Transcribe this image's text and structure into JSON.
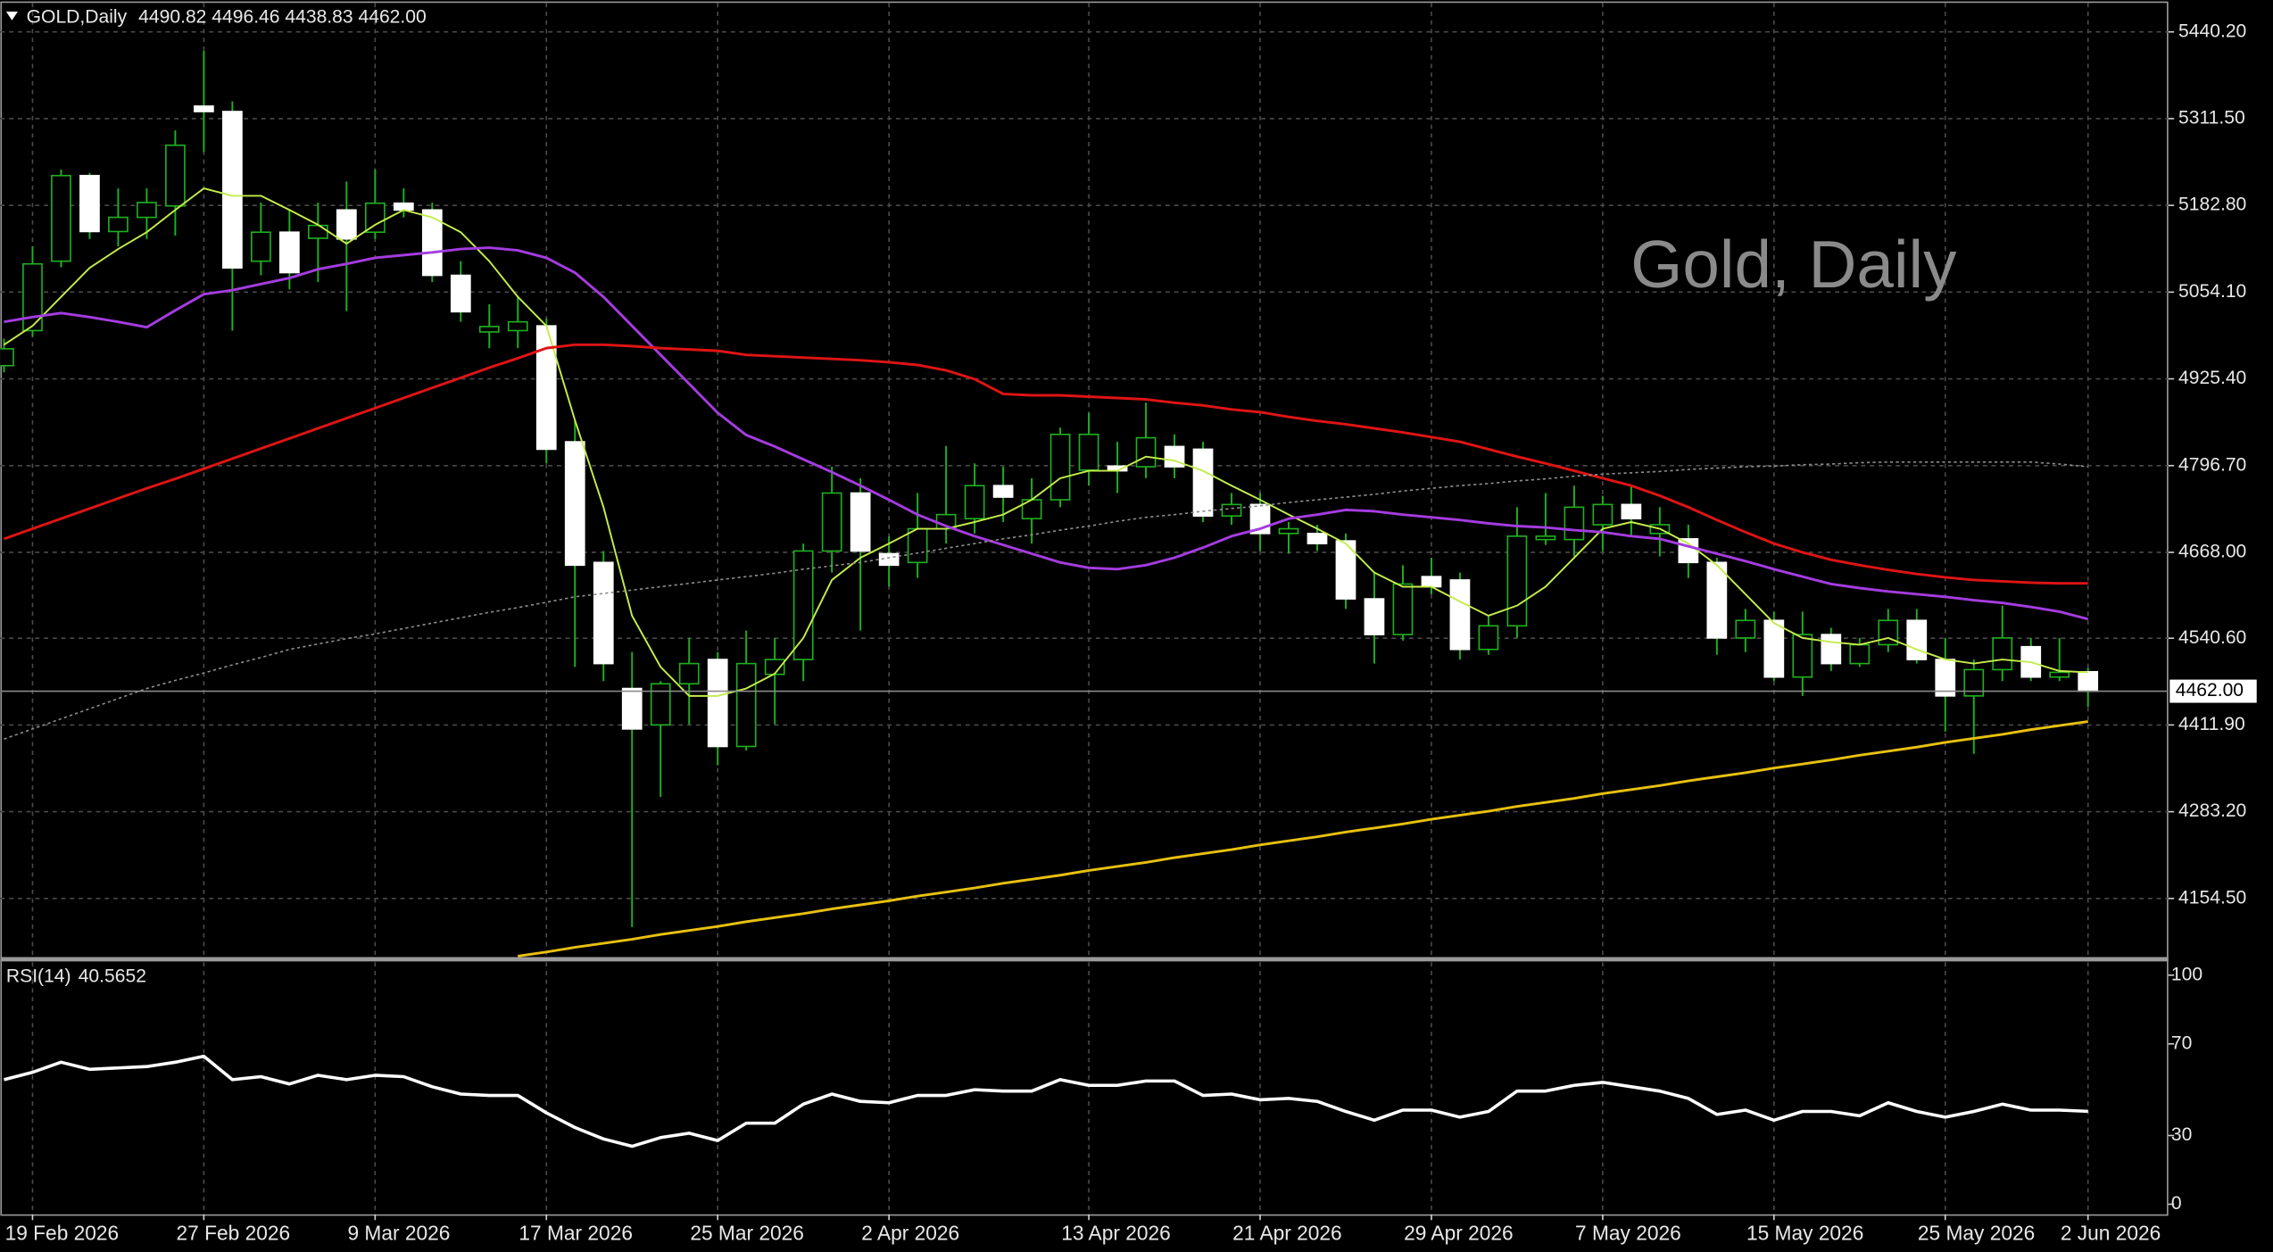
{
  "chart_data": {
    "type": "candlestick",
    "title": "Gold, Daily",
    "symbol": "GOLD,Daily",
    "quote": "4490.82 4496.46 4438.83 4462.00",
    "categories": [
      null,
      "19 Feb 2026",
      null,
      null,
      null,
      null,
      null,
      "27 Feb 2026",
      null,
      null,
      null,
      null,
      null,
      "9 Mar 2026",
      null,
      null,
      null,
      null,
      null,
      "17 Mar 2026",
      null,
      null,
      null,
      null,
      null,
      "25 Mar 2026",
      null,
      null,
      null,
      null,
      null,
      "2 Apr 2026",
      null,
      null,
      null,
      null,
      null,
      null,
      "13 Apr 2026",
      null,
      null,
      null,
      null,
      null,
      "21 Apr 2026",
      null,
      null,
      null,
      null,
      null,
      "29 Apr 2026",
      null,
      null,
      null,
      null,
      null,
      "7 May 2026",
      null,
      null,
      null,
      null,
      null,
      "15 May 2026",
      null,
      null,
      null,
      null,
      null,
      "25 May 2026",
      null,
      null,
      null,
      null,
      "2 Jun 2026"
    ],
    "open": [
      4945,
      4997,
      5100,
      5227,
      5144,
      5165,
      5182,
      5330,
      5322,
      5100,
      5143,
      5134,
      5176,
      5143,
      5186,
      5176,
      5079,
      4995,
      4997,
      5004,
      4832,
      4653,
      4466,
      4412,
      4473,
      4509,
      4380,
      4487,
      4509,
      4670,
      4756,
      4666,
      4653,
      4703,
      4718,
      4767,
      4718,
      4746,
      4790,
      4796,
      4795,
      4825,
      4821,
      4722,
      4739,
      4696,
      4696,
      4685,
      4599,
      4546,
      4632,
      4627,
      4524,
      4559,
      4687,
      4687,
      4709,
      4739,
      4696,
      4688,
      4653,
      4541,
      4567,
      4483,
      4546,
      4503,
      4531,
      4567,
      4509,
      4455,
      4494,
      4528,
      4483,
      4490.82
    ],
    "high": [
      4985,
      5122,
      5236,
      5231,
      5208,
      5208,
      5294,
      5412,
      5337,
      5187,
      5176,
      5187,
      5218,
      5236,
      5208,
      5187,
      5100,
      5036,
      5047,
      5015,
      4864,
      4670,
      4520,
      4477,
      4541,
      4520,
      4552,
      4541,
      4681,
      4795,
      4778,
      4692,
      4756,
      4826,
      4800,
      4795,
      4778,
      4853,
      4875,
      4832,
      4890,
      4843,
      4832,
      4756,
      4756,
      4713,
      4709,
      4696,
      4638,
      4649,
      4660,
      4638,
      4573,
      4735,
      4756,
      4767,
      4752,
      4767,
      4735,
      4709,
      4660,
      4584,
      4580,
      4580,
      4556,
      4541,
      4584,
      4584,
      4541,
      4509,
      4589,
      4541,
      4541,
      4496.46
    ],
    "low": [
      4935,
      4988,
      5091,
      5133,
      5122,
      5133,
      5138,
      5262,
      4997,
      5079,
      5058,
      5069,
      5026,
      5133,
      5165,
      5069,
      5010,
      4971,
      4971,
      4800,
      4498,
      4477,
      4112,
      4305,
      4413,
      4352,
      4374,
      4413,
      4477,
      4638,
      4552,
      4617,
      4630,
      4681,
      4696,
      4713,
      4681,
      4735,
      4767,
      4756,
      4778,
      4778,
      4713,
      4709,
      4670,
      4666,
      4670,
      4584,
      4503,
      4537,
      4606,
      4509,
      4516,
      4541,
      4679,
      4662,
      4670,
      4692,
      4662,
      4630,
      4516,
      4520,
      4477,
      4455,
      4492,
      4498,
      4520,
      4503,
      4402,
      4369,
      4477,
      4477,
      4477,
      4438.83
    ],
    "close": [
      4970,
      5096,
      5227,
      5144,
      5165,
      5187,
      5272,
      5322,
      5090,
      5143,
      5083,
      5153,
      5133,
      5186,
      5176,
      5079,
      5025,
      5003,
      5010,
      4821,
      4649,
      4503,
      4406,
      4473,
      4503,
      4380,
      4503,
      4509,
      4670,
      4756,
      4670,
      4649,
      4703,
      4724,
      4767,
      4750,
      4746,
      4843,
      4843,
      4789,
      4838,
      4795,
      4722,
      4739,
      4696,
      4703,
      4681,
      4599,
      4546,
      4621,
      4617,
      4524,
      4559,
      4692,
      4692,
      4735,
      4739,
      4718,
      4709,
      4653,
      4541,
      4567,
      4483,
      4546,
      4503,
      4531,
      4567,
      4509,
      4455,
      4494,
      4541,
      4483,
      4490,
      4462
    ],
    "up_color": "#000000",
    "down_color": "#ffffff",
    "wick_color": "#1fb01f",
    "series": [
      {
        "color": "#c4ec4c",
        "width": 1.2,
        "values": [
          4976,
          5004,
          5047,
          5090,
          5118,
          5143,
          5176,
          5208,
          5197,
          5197,
          5176,
          5154,
          5126,
          5154,
          5176,
          5165,
          5143,
          5100,
          5047,
          5004,
          4864,
          4735,
          4574,
          4498,
          4455,
          4455,
          4466,
          4488,
          4541,
          4627,
          4660,
          4681,
          4703,
          4703,
          4713,
          4724,
          4746,
          4778,
          4789,
          4789,
          4810,
          4804,
          4789,
          4767,
          4746,
          4724,
          4703,
          4681,
          4638,
          4617,
          4617,
          4595,
          4574,
          4589,
          4617,
          4660,
          4703,
          4713,
          4703,
          4681,
          4649,
          4606,
          4563,
          4541,
          4535,
          4531,
          4541,
          4524,
          4509,
          4503,
          4509,
          4505,
          4492,
          4490
        ]
      },
      {
        "color": "#a43ce0",
        "width": 1.8,
        "values": [
          5010,
          5017,
          5023,
          5017,
          5010,
          5002,
          5027,
          5051,
          5057,
          5066,
          5075,
          5088,
          5096,
          5105,
          5109,
          5113,
          5118,
          5120,
          5116,
          5105,
          5083,
          5047,
          5004,
          4961,
          4918,
          4875,
          4842,
          4825,
          4806,
          4787,
          4767,
          4746,
          4724,
          4707,
          4692,
          4679,
          4666,
          4653,
          4645,
          4643,
          4649,
          4660,
          4675,
          4692,
          4703,
          4718,
          4724,
          4731,
          4729,
          4724,
          4720,
          4716,
          4711,
          4707,
          4705,
          4701,
          4698,
          4692,
          4688,
          4677,
          4666,
          4655,
          4643,
          4632,
          4621,
          4615,
          4610,
          4606,
          4602,
          4597,
          4593,
          4587,
          4580,
          4569
        ]
      },
      {
        "color": "#e01414",
        "width": 1.8,
        "values": [
          4688,
          4703,
          4718,
          4733,
          4748,
          4763,
          4777,
          4792,
          4807,
          4822,
          4837,
          4852,
          4867,
          4882,
          4897,
          4912,
          4927,
          4942,
          4956,
          4971,
          4976,
          4976,
          4974,
          4971,
          4969,
          4967,
          4961,
          4959,
          4957,
          4955,
          4953,
          4950,
          4946,
          4938,
          4925,
          4903,
          4901,
          4901,
          4899,
          4897,
          4895,
          4890,
          4886,
          4880,
          4876,
          4869,
          4863,
          4858,
          4852,
          4846,
          4839,
          4832,
          4821,
          4810,
          4800,
          4789,
          4778,
          4767,
          4752,
          4735,
          4716,
          4698,
          4681,
          4668,
          4657,
          4649,
          4642,
          4636,
          4631,
          4627,
          4625,
          4623,
          4622,
          4622
        ]
      },
      {
        "color": "#8c8c8c",
        "width": 1,
        "dash": true,
        "values": [
          4391,
          4406,
          4421,
          4436,
          4451,
          4466,
          4478,
          4489,
          4501,
          4512,
          4524,
          4532,
          4540,
          4547,
          4555,
          4563,
          4571,
          4579,
          4586,
          4594,
          4602,
          4607,
          4612,
          4617,
          4622,
          4627,
          4632,
          4637,
          4643,
          4648,
          4653,
          4660,
          4667,
          4674,
          4681,
          4688,
          4694,
          4701,
          4707,
          4714,
          4720,
          4724,
          4729,
          4733,
          4737,
          4742,
          4746,
          4750,
          4754,
          4759,
          4763,
          4767,
          4770,
          4774,
          4777,
          4781,
          4784,
          4786,
          4788,
          4791,
          4793,
          4795,
          4796,
          4798,
          4799,
          4801,
          4802,
          4802,
          4802,
          4802,
          4802,
          4802,
          4799,
          4795
        ]
      },
      {
        "color": "#e8c010",
        "width": 1.8,
        "values": [
          null,
          null,
          null,
          null,
          null,
          null,
          null,
          null,
          null,
          null,
          null,
          null,
          null,
          null,
          null,
          null,
          null,
          null,
          4069,
          4075,
          4082,
          4088,
          4094,
          4101,
          4107,
          4113,
          4120,
          4126,
          4132,
          4139,
          4145,
          4151,
          4158,
          4164,
          4170,
          4177,
          4183,
          4189,
          4196,
          4202,
          4208,
          4215,
          4221,
          4227,
          4234,
          4240,
          4246,
          4253,
          4259,
          4265,
          4272,
          4278,
          4284,
          4291,
          4297,
          4303,
          4310,
          4316,
          4322,
          4329,
          4335,
          4341,
          4348,
          4354,
          4360,
          4367,
          4373,
          4379,
          4386,
          4392,
          4398,
          4405,
          4411,
          4417
        ]
      }
    ],
    "current_price": {
      "value": 4462,
      "label": "4462.00"
    },
    "ylim": [
      4066.4,
      5483.2
    ],
    "yticks": [
      {
        "value": 5440.2,
        "label": "5440.20"
      },
      {
        "value": 5311.5,
        "label": "5311.50"
      },
      {
        "value": 5182.8,
        "label": "5182.80"
      },
      {
        "value": 5054.1,
        "label": "5054.10"
      },
      {
        "value": 4925.4,
        "label": "4925.40"
      },
      {
        "value": 4796.7,
        "label": "4796.70"
      },
      {
        "value": 4668,
        "label": "4668.00"
      },
      {
        "value": 4540.6,
        "label": "4540.60"
      },
      {
        "value": 4411.9,
        "label": "4411.90"
      },
      {
        "value": 4283.2,
        "label": "4283.20"
      },
      {
        "value": 4154.5,
        "label": "4154.50"
      }
    ],
    "grid": true,
    "rsi": {
      "type": "line",
      "label": "RSI(14)",
      "color": "#ffffff",
      "values": [
        54.4,
        57.6,
        62.0,
        58.9,
        59.5,
        60.1,
        62.0,
        64.6,
        54.4,
        55.7,
        52.5,
        56.3,
        54.4,
        56.3,
        55.7,
        51.3,
        48.1,
        47.5,
        47.5,
        39.9,
        33.5,
        28.5,
        25.3,
        29.1,
        31.0,
        27.8,
        35.4,
        35.4,
        43.7,
        48.1,
        44.9,
        44.3,
        47.5,
        47.5,
        50.0,
        49.4,
        49.4,
        54.4,
        51.9,
        51.9,
        53.8,
        53.8,
        47.5,
        48.1,
        45.6,
        46.2,
        44.9,
        40.5,
        36.7,
        41.1,
        41.1,
        38.0,
        40.5,
        49.4,
        49.4,
        51.9,
        53.2,
        51.3,
        49.4,
        46.2,
        39.2,
        41.1,
        36.7,
        40.5,
        40.5,
        38.6,
        44.3,
        40.5,
        38.0,
        40.5,
        43.7,
        41.1,
        41.1,
        40.5652
      ],
      "ylim": [
        -4.4,
        106.3
      ],
      "yticks": [
        100,
        70,
        30,
        0
      ]
    }
  }
}
